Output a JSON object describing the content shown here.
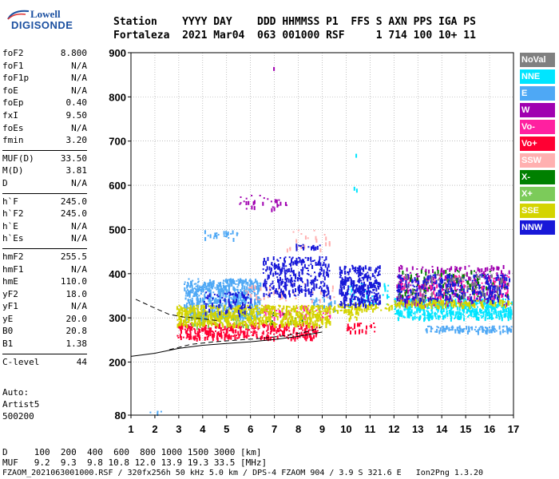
{
  "logo": {
    "line1": "Lowell",
    "line2": "DIGISONDE"
  },
  "header": {
    "row1": "Station    YYYY DAY    DDD HHMMSS P1  FFS S AXN PPS IGA PS",
    "row2": "Fortaleza  2021 Mar04  063 001000 RSF     1 714 100 10+ 11"
  },
  "params": {
    "group1": [
      {
        "k": "foF2",
        "v": "8.800"
      },
      {
        "k": "foF1",
        "v": "N/A"
      },
      {
        "k": "foF1p",
        "v": "N/A"
      },
      {
        "k": "foE",
        "v": "N/A"
      },
      {
        "k": "foEp",
        "v": "0.40"
      },
      {
        "k": "fxI",
        "v": "9.50"
      },
      {
        "k": "foEs",
        "v": "N/A"
      },
      {
        "k": "fmin",
        "v": "3.20"
      }
    ],
    "group2": [
      {
        "k": "MUF(D)",
        "v": "33.50"
      },
      {
        "k": "M(D)",
        "v": "3.81"
      },
      {
        "k": "D",
        "v": "N/A"
      }
    ],
    "group3": [
      {
        "k": "h`F",
        "v": "245.0"
      },
      {
        "k": "h`F2",
        "v": "245.0"
      },
      {
        "k": "h`E",
        "v": "N/A"
      },
      {
        "k": "h`Es",
        "v": "N/A"
      }
    ],
    "group4": [
      {
        "k": "hmF2",
        "v": "255.5"
      },
      {
        "k": "hmF1",
        "v": "N/A"
      },
      {
        "k": "hmE",
        "v": "110.0"
      },
      {
        "k": "yF2",
        "v": "18.0"
      },
      {
        "k": "yF1",
        "v": "N/A"
      },
      {
        "k": "yE",
        "v": "20.0"
      },
      {
        "k": "B0",
        "v": "20.8"
      },
      {
        "k": "B1",
        "v": "1.38"
      }
    ],
    "group5": [
      {
        "k": "C-level",
        "v": "44"
      }
    ]
  },
  "auto": {
    "line1": "Auto:",
    "line2": "Artist5",
    "line3": "500200"
  },
  "legend": [
    {
      "label": "NoVal",
      "color": "#808080"
    },
    {
      "label": "NNE",
      "color": "#00e5ff"
    },
    {
      "label": "E",
      "color": "#4ea8f5"
    },
    {
      "label": "W",
      "color": "#a000b0"
    },
    {
      "label": "Vo-",
      "color": "#ff20a0"
    },
    {
      "label": "Vo+",
      "color": "#ff0033"
    },
    {
      "label": "SSW",
      "color": "#ffb0b0"
    },
    {
      "label": "X-",
      "color": "#008000"
    },
    {
      "label": "X+",
      "color": "#7ccb5a"
    },
    {
      "label": "SSE",
      "color": "#d4d400"
    },
    {
      "label": "NNW",
      "color": "#1818d8"
    }
  ],
  "bottom": {
    "line1": "D     100  200  400  600  800 1000 1500 3000 [km]",
    "line2": "MUF   9.2  9.3  9.8 10.8 12.0 13.9 19.3 33.5 [MHz]",
    "line3": "FZAOM_2021063001000.RSF / 320fx256h 50 kHz 5.0 km / DPS-4 FZAOM 904 / 3.9 S 321.6 E   Ion2Png 1.3.20"
  },
  "chart_data": {
    "type": "scatter",
    "title": "",
    "xlabel": "",
    "ylabel": "",
    "xlim": [
      1,
      17
    ],
    "ylim": [
      80,
      900
    ],
    "x_ticks": [
      1,
      2,
      3,
      4,
      5,
      6,
      7,
      8,
      9,
      10,
      11,
      12,
      13,
      14,
      15,
      16,
      17
    ],
    "y_ticks": [
      80,
      200,
      300,
      400,
      500,
      600,
      700,
      800,
      900
    ],
    "grid": "dotted",
    "legend_position": "right",
    "series": [
      {
        "name": "NNE",
        "color": "#00e5ff",
        "regions": [
          {
            "x": [
              12.0,
              16.9
            ],
            "y": [
              300,
              345
            ],
            "density": 0.9
          },
          {
            "x": [
              10.0,
              11.8
            ],
            "y": [
              330,
              380
            ],
            "density": 0.2
          },
          {
            "x": [
              10.2,
              10.5
            ],
            "y": [
              590,
              700
            ],
            "density": 0.03
          }
        ]
      },
      {
        "name": "E",
        "color": "#4ea8f5",
        "regions": [
          {
            "x": [
              3.2,
              6.4
            ],
            "y": [
              300,
              390
            ],
            "density": 0.8
          },
          {
            "x": [
              4.0,
              5.5
            ],
            "y": [
              480,
              500
            ],
            "density": 0.3
          },
          {
            "x": [
              13.3,
              16.9
            ],
            "y": [
              270,
              283
            ],
            "density": 0.8
          },
          {
            "x": [
              1.6,
              2.3
            ],
            "y": [
              85,
              90
            ],
            "density": 0.4
          },
          {
            "x": [
              8.5,
              9.5
            ],
            "y": [
              320,
              350
            ],
            "density": 0.3
          }
        ]
      },
      {
        "name": "W",
        "color": "#a000b0",
        "regions": [
          {
            "x": [
              12.1,
              16.8
            ],
            "y": [
              330,
              420
            ],
            "density": 0.25
          },
          {
            "x": [
              5.5,
              7.5
            ],
            "y": [
              545,
              580
            ],
            "density": 0.15
          },
          {
            "x": [
              6.9,
              7.2
            ],
            "y": [
              860,
              880
            ],
            "density": 0.05
          }
        ]
      },
      {
        "name": "Vo-",
        "color": "#ff20a0",
        "regions": [
          {
            "x": [
              6.5,
              9.3
            ],
            "y": [
              300,
              330
            ],
            "density": 0.3
          },
          {
            "x": [
              12.1,
              16.8
            ],
            "y": [
              345,
              400
            ],
            "density": 0.2
          }
        ]
      },
      {
        "name": "Vo+",
        "color": "#ff0033",
        "regions": [
          {
            "x": [
              2.9,
              8.8
            ],
            "y": [
              255,
              290
            ],
            "density": 0.7
          },
          {
            "x": [
              10.0,
              11.2
            ],
            "y": [
              270,
              290
            ],
            "density": 0.4
          }
        ]
      },
      {
        "name": "SSW",
        "color": "#ffb0b0",
        "regions": [
          {
            "x": [
              5.5,
              9.5
            ],
            "y": [
              340,
              380
            ],
            "density": 0.1
          },
          {
            "x": [
              7.5,
              9.5
            ],
            "y": [
              450,
              500
            ],
            "density": 0.08
          }
        ]
      },
      {
        "name": "X-",
        "color": "#008000",
        "regions": [
          {
            "x": [
              6.5,
              8.5
            ],
            "y": [
              290,
              320
            ],
            "density": 0.1
          },
          {
            "x": [
              12.2,
              16.8
            ],
            "y": [
              350,
              410
            ],
            "density": 0.12
          }
        ]
      },
      {
        "name": "X+",
        "color": "#7ccb5a",
        "regions": [
          {
            "x": [
              3.0,
              6.0
            ],
            "y": [
              280,
              310
            ],
            "density": 0.15
          }
        ]
      },
      {
        "name": "SSE",
        "color": "#d4d400",
        "regions": [
          {
            "x": [
              2.9,
              9.3
            ],
            "y": [
              285,
              330
            ],
            "density": 0.85
          },
          {
            "x": [
              9.3,
              11.9
            ],
            "y": [
              318,
              335
            ],
            "density": 0.7
          },
          {
            "x": [
              12.0,
              16.9
            ],
            "y": [
              328,
              342
            ],
            "density": 0.8
          },
          {
            "x": [
              10.0,
              10.5
            ],
            "y": [
              300,
              320
            ],
            "density": 0.5
          }
        ]
      },
      {
        "name": "NNW",
        "color": "#1818d8",
        "regions": [
          {
            "x": [
              6.5,
              9.3
            ],
            "y": [
              350,
              440
            ],
            "density": 0.45
          },
          {
            "x": [
              9.7,
              11.4
            ],
            "y": [
              330,
              420
            ],
            "density": 0.75
          },
          {
            "x": [
              7.8,
              9.0
            ],
            "y": [
              460,
              468
            ],
            "density": 0.7
          },
          {
            "x": [
              12.1,
              16.8
            ],
            "y": [
              340,
              400
            ],
            "density": 0.35
          },
          {
            "x": [
              4.0,
              6.0
            ],
            "y": [
              310,
              360
            ],
            "density": 0.25
          }
        ]
      },
      {
        "name": "NoVal",
        "color": "#808080",
        "regions": [
          {
            "x": [
              12.1,
              16.5
            ],
            "y": [
              340,
              400
            ],
            "density": 0.1
          }
        ]
      }
    ],
    "profile_curves": [
      {
        "style": "solid",
        "x": [
          1.0,
          2.0,
          3.0,
          4.0,
          5.0,
          6.0,
          7.0,
          8.0,
          9.0
        ],
        "y": [
          213,
          220,
          231,
          238,
          242,
          246,
          251,
          258,
          268
        ]
      },
      {
        "style": "dashed",
        "x": [
          1.2,
          2.0,
          2.6,
          3.2,
          4.0,
          4.6
        ],
        "y": [
          342,
          322,
          308,
          302,
          298,
          294
        ]
      },
      {
        "style": "dashed",
        "x": [
          2.6,
          3.5,
          4.5,
          5.5,
          6.5,
          7.5,
          8.5,
          9.0
        ],
        "y": [
          228,
          240,
          246,
          250,
          254,
          260,
          270,
          280
        ]
      }
    ]
  }
}
